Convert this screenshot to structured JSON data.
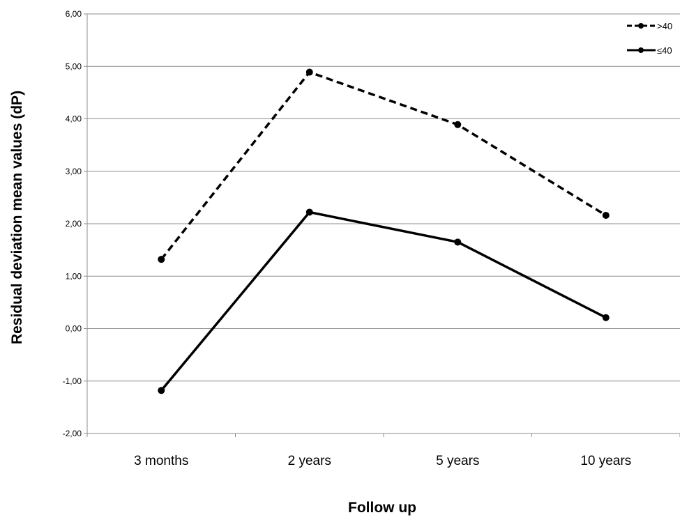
{
  "chart_data": {
    "type": "line",
    "title": "",
    "xlabel": "Follow up",
    "ylabel": "Residual deviation mean values (dP)",
    "categories": [
      "3 months",
      "2 years",
      "5 years",
      "10 years"
    ],
    "yticks": [
      "-2,00",
      "-1,00",
      "0,00",
      "1,00",
      "2,00",
      "3,00",
      "4,00",
      "5,00",
      "6,00"
    ],
    "ylim": [
      -2,
      6
    ],
    "grid": "horizontal",
    "legend_position": "top-right",
    "series": [
      {
        "name": ">40",
        "style": "dashed",
        "color": "#000000",
        "values": [
          1.32,
          4.89,
          3.89,
          2.16
        ]
      },
      {
        "name": "≤40",
        "style": "solid",
        "color": "#000000",
        "values": [
          -1.18,
          2.22,
          1.65,
          0.21
        ]
      }
    ]
  }
}
